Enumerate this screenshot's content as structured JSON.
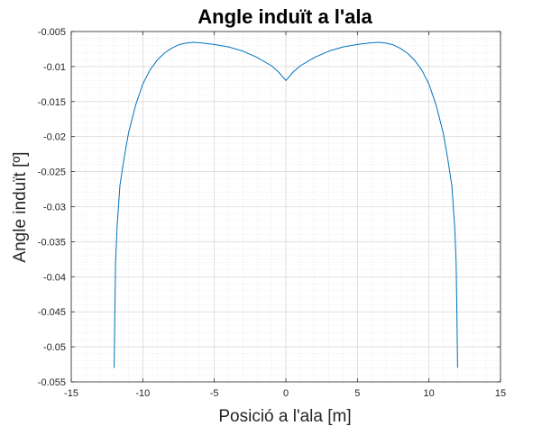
{
  "chart_data": {
    "type": "line",
    "title": "Angle induït a l'ala",
    "xlabel": "Posició a l'ala [m]",
    "ylabel": "Angle induït [º]",
    "xlim": [
      -15,
      15
    ],
    "ylim": [
      -0.055,
      -0.005
    ],
    "xticks": [
      -15,
      -10,
      -5,
      0,
      5,
      10,
      15
    ],
    "xtick_labels": [
      "-15",
      "-10",
      "-5",
      "0",
      "5",
      "10",
      "15"
    ],
    "yticks": [
      -0.055,
      -0.05,
      -0.045,
      -0.04,
      -0.035,
      -0.03,
      -0.025,
      -0.02,
      -0.015,
      -0.01,
      -0.005
    ],
    "ytick_labels": [
      "-0.055",
      "-0.05",
      "-0.045",
      "-0.04",
      "-0.035",
      "-0.03",
      "-0.025",
      "-0.02",
      "-0.015",
      "-0.01",
      "-0.005"
    ],
    "grid": true,
    "minor_grid": true,
    "colors": {
      "line": "#0072BD",
      "grid": "#d9d9d9",
      "axis": "#262626"
    },
    "series": [
      {
        "x": [
          -12.0,
          -11.95,
          -11.9,
          -11.8,
          -11.6,
          -11.3,
          -11.0,
          -10.5,
          -10.0,
          -9.5,
          -9.0,
          -8.5,
          -8.0,
          -7.5,
          -7.0,
          -6.5,
          -6.0,
          -5.0,
          -4.0,
          -3.0,
          -2.0,
          -1.0,
          -0.5,
          0.0,
          0.5,
          1.0,
          2.0,
          3.0,
          4.0,
          5.0,
          6.0,
          6.5,
          7.0,
          7.5,
          8.0,
          8.5,
          9.0,
          9.5,
          10.0,
          10.5,
          11.0,
          11.3,
          11.6,
          11.8,
          11.9,
          11.95,
          12.0
        ],
        "y": [
          -0.053,
          -0.045,
          -0.038,
          -0.033,
          -0.027,
          -0.023,
          -0.0195,
          -0.0155,
          -0.0125,
          -0.0105,
          -0.0091,
          -0.0081,
          -0.0074,
          -0.0069,
          -0.00665,
          -0.00655,
          -0.0066,
          -0.00685,
          -0.0072,
          -0.0078,
          -0.0087,
          -0.0099,
          -0.0108,
          -0.012,
          -0.0108,
          -0.0099,
          -0.0087,
          -0.0078,
          -0.0072,
          -0.00685,
          -0.0066,
          -0.00655,
          -0.00665,
          -0.0069,
          -0.0074,
          -0.0081,
          -0.0091,
          -0.0105,
          -0.0125,
          -0.0155,
          -0.0195,
          -0.023,
          -0.027,
          -0.033,
          -0.038,
          -0.045,
          -0.053
        ]
      }
    ]
  }
}
